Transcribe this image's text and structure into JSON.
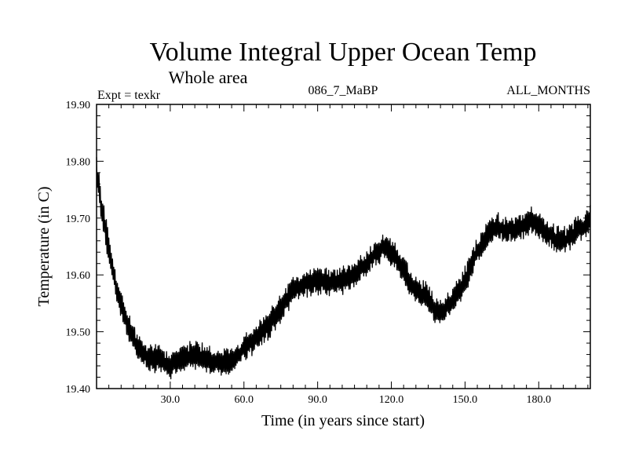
{
  "chart_data": {
    "type": "line",
    "title": "Volume Integral Upper Ocean Temp",
    "subtitle": "Whole area",
    "header_left": "Expt = texkr",
    "header_center": "086_7_MaBP",
    "header_right": "ALL_MONTHS",
    "xlabel": "Time (in years since start)",
    "ylabel": "Temperature (in C)",
    "xlim": [
      0,
      201
    ],
    "ylim": [
      19.4,
      19.9
    ],
    "xticks": [
      30,
      60,
      90,
      120,
      150,
      180
    ],
    "xtick_labels": [
      "30.0",
      "60.0",
      "90.0",
      "120.0",
      "150.0",
      "180.0"
    ],
    "yticks": [
      19.4,
      19.5,
      19.6,
      19.7,
      19.8,
      19.9
    ],
    "ytick_labels": [
      "19.40",
      "19.50",
      "19.60",
      "19.70",
      "19.80",
      "19.90"
    ],
    "grid": false,
    "series": [
      {
        "name": "upper ocean temp",
        "color": "#000000",
        "oscillation_amplitude": 0.022,
        "samples_per_year": 4,
        "x": [
          0,
          2,
          4,
          6,
          8,
          10,
          13,
          16,
          19,
          22,
          25,
          28,
          30,
          33,
          36,
          40,
          45,
          50,
          55,
          60,
          65,
          70,
          75,
          80,
          85,
          90,
          95,
          100,
          105,
          110,
          113,
          116,
          118,
          120,
          123,
          126,
          129,
          132,
          135,
          138,
          140,
          143,
          146,
          150,
          153,
          156,
          160,
          163,
          166,
          170,
          175,
          178,
          180,
          183,
          186,
          190,
          193,
          196,
          199,
          201
        ],
        "y": [
          19.79,
          19.72,
          19.67,
          19.62,
          19.58,
          19.55,
          19.51,
          19.48,
          19.46,
          19.45,
          19.455,
          19.445,
          19.44,
          19.45,
          19.455,
          19.46,
          19.45,
          19.445,
          19.45,
          19.47,
          19.49,
          19.51,
          19.54,
          19.575,
          19.585,
          19.59,
          19.585,
          19.59,
          19.6,
          19.62,
          19.635,
          19.645,
          19.65,
          19.64,
          19.625,
          19.6,
          19.575,
          19.565,
          19.56,
          19.54,
          19.53,
          19.545,
          19.56,
          19.59,
          19.62,
          19.65,
          19.675,
          19.685,
          19.68,
          19.68,
          19.69,
          19.695,
          19.69,
          19.675,
          19.665,
          19.66,
          19.665,
          19.68,
          19.685,
          19.7
        ]
      }
    ]
  }
}
